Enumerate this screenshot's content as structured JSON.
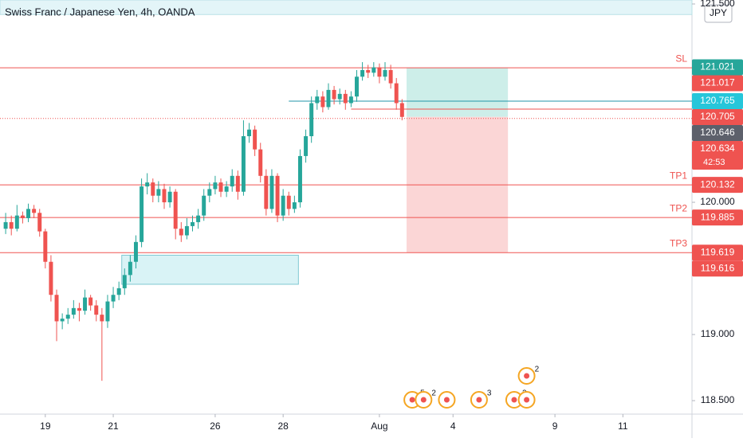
{
  "chart_data": {
    "type": "candlestick",
    "title": "Swiss Franc / Japanese Yen, 4h, OANDA",
    "currency": "JPY",
    "up_color": "#26a69a",
    "down_color": "#ef5350",
    "candles": [
      [
        119.8,
        119.92,
        119.76,
        119.85
      ],
      [
        119.85,
        119.9,
        119.75,
        119.8
      ],
      [
        119.8,
        119.98,
        119.78,
        119.9
      ],
      [
        119.9,
        119.93,
        119.84,
        119.88
      ],
      [
        119.88,
        119.99,
        119.85,
        119.95
      ],
      [
        119.95,
        119.98,
        119.88,
        119.92
      ],
      [
        119.92,
        119.95,
        119.74,
        119.78
      ],
      [
        119.78,
        119.8,
        119.5,
        119.55
      ],
      [
        119.55,
        119.6,
        119.25,
        119.3
      ],
      [
        119.3,
        119.34,
        118.95,
        119.1
      ],
      [
        119.1,
        119.16,
        119.04,
        119.12
      ],
      [
        119.12,
        119.2,
        119.08,
        119.15
      ],
      [
        119.15,
        119.26,
        119.12,
        119.2
      ],
      [
        119.2,
        119.24,
        119.1,
        119.18
      ],
      [
        119.18,
        119.34,
        119.15,
        119.28
      ],
      [
        119.28,
        119.3,
        119.18,
        119.22
      ],
      [
        119.22,
        119.26,
        119.1,
        119.15
      ],
      [
        119.15,
        119.2,
        118.65,
        119.1
      ],
      [
        119.1,
        119.3,
        119.05,
        119.25
      ],
      [
        119.25,
        119.36,
        119.2,
        119.3
      ],
      [
        119.3,
        119.4,
        119.26,
        119.35
      ],
      [
        119.35,
        119.5,
        119.3,
        119.45
      ],
      [
        119.45,
        119.6,
        119.4,
        119.55
      ],
      [
        119.55,
        119.75,
        119.5,
        119.7
      ],
      [
        119.7,
        120.18,
        119.66,
        120.12
      ],
      [
        120.12,
        120.22,
        120.06,
        120.15
      ],
      [
        120.15,
        120.18,
        120.0,
        120.05
      ],
      [
        120.05,
        120.16,
        120.0,
        120.1
      ],
      [
        120.1,
        120.14,
        119.95,
        120.0
      ],
      [
        120.0,
        120.12,
        119.96,
        120.08
      ],
      [
        120.08,
        120.1,
        119.72,
        119.8
      ],
      [
        119.8,
        119.85,
        119.7,
        119.75
      ],
      [
        119.75,
        119.88,
        119.72,
        119.82
      ],
      [
        119.82,
        119.9,
        119.78,
        119.85
      ],
      [
        119.85,
        119.95,
        119.8,
        119.9
      ],
      [
        119.9,
        120.1,
        119.86,
        120.05
      ],
      [
        120.05,
        120.15,
        120.0,
        120.1
      ],
      [
        120.1,
        120.2,
        120.06,
        120.15
      ],
      [
        120.15,
        120.18,
        120.04,
        120.08
      ],
      [
        120.08,
        120.16,
        120.04,
        120.12
      ],
      [
        120.12,
        120.25,
        120.08,
        120.2
      ],
      [
        120.2,
        120.24,
        120.02,
        120.08
      ],
      [
        120.08,
        120.62,
        120.05,
        120.5
      ],
      [
        120.5,
        120.6,
        120.45,
        120.55
      ],
      [
        120.55,
        120.58,
        120.35,
        120.4
      ],
      [
        120.4,
        120.45,
        120.15,
        120.2
      ],
      [
        120.2,
        120.25,
        119.9,
        119.95
      ],
      [
        119.95,
        120.25,
        119.92,
        120.2
      ],
      [
        120.2,
        120.22,
        119.85,
        119.9
      ],
      [
        119.9,
        120.1,
        119.86,
        120.05
      ],
      [
        120.05,
        120.08,
        119.9,
        119.95
      ],
      [
        119.95,
        120.05,
        119.92,
        120.0
      ],
      [
        120.0,
        120.4,
        119.96,
        120.35
      ],
      [
        120.35,
        120.55,
        120.3,
        120.5
      ],
      [
        120.5,
        120.8,
        120.45,
        120.75
      ],
      [
        120.75,
        120.85,
        120.7,
        120.8
      ],
      [
        120.8,
        120.84,
        120.68,
        120.72
      ],
      [
        120.72,
        120.9,
        120.7,
        120.85
      ],
      [
        120.85,
        120.88,
        120.74,
        120.78
      ],
      [
        120.78,
        120.86,
        120.74,
        120.82
      ],
      [
        120.82,
        120.85,
        120.7,
        120.75
      ],
      [
        120.75,
        120.84,
        120.72,
        120.8
      ],
      [
        120.8,
        121.0,
        120.76,
        120.95
      ],
      [
        120.95,
        121.06,
        120.92,
        121.0
      ],
      [
        121.0,
        121.04,
        120.94,
        120.98
      ],
      [
        120.98,
        121.06,
        120.95,
        121.02
      ],
      [
        121.02,
        121.05,
        120.9,
        120.95
      ],
      [
        120.95,
        121.06,
        120.92,
        121.0
      ],
      [
        121.0,
        121.04,
        120.86,
        120.9
      ],
      [
        120.9,
        120.94,
        120.7,
        120.75
      ],
      [
        120.75,
        120.78,
        120.62,
        120.646
      ]
    ],
    "xlim": [
      -1,
      121.2
    ],
    "xticks": [
      {
        "value": 7,
        "label": "19"
      },
      {
        "value": 19,
        "label": "21"
      },
      {
        "value": 37,
        "label": "26"
      },
      {
        "value": 49,
        "label": "28"
      },
      {
        "value": 66,
        "label": "Aug"
      },
      {
        "value": 79,
        "label": "4"
      },
      {
        "value": 97,
        "label": "9"
      },
      {
        "value": 109,
        "label": "11"
      }
    ],
    "ylim": [
      118.398,
      121.53
    ],
    "yticks": [
      {
        "value": 121.5,
        "label": "121.500"
      },
      {
        "value": 120,
        "label": "120.000"
      },
      {
        "value": 119,
        "label": "119.000"
      },
      {
        "value": 118.5,
        "label": "118.500"
      }
    ],
    "levels": [
      {
        "value": 121.017,
        "label": "SL",
        "color": "#ef5350"
      },
      {
        "value": 120.132,
        "label": "TP1",
        "color": "#ef5350"
      },
      {
        "value": 119.885,
        "label": "TP2",
        "color": "#ef5350"
      },
      {
        "value": 119.619,
        "label": "TP3",
        "color": "#ef5350"
      }
    ],
    "rays": [
      {
        "value": 120.765,
        "from": 50,
        "color": "#2196a8"
      },
      {
        "value": 120.705,
        "from": 61,
        "color": "#ef5350"
      }
    ],
    "dotted_level": {
      "value": 120.634,
      "color": "#ef5350"
    },
    "zones": [
      {
        "x": [
          20.5,
          51.7
        ],
        "y": [
          119.38,
          119.6
        ],
        "color": "#d9f3f6",
        "stroke": "#7fc8d3"
      },
      {
        "x": [
          -1,
          121.2
        ],
        "y": [
          121.42,
          121.53
        ],
        "color": "#e3f5f8",
        "stroke": "#b9e0e6"
      }
    ],
    "position": {
      "x": [
        70.8,
        88.7
      ],
      "top": 121.017,
      "entry": 120.646,
      "bottom": 119.619
    },
    "price_tags": [
      {
        "value": 121.021,
        "label": "121.021",
        "color": "#26a69a"
      },
      {
        "value": 121.017,
        "label": "121.017",
        "color": "#ef5350"
      },
      {
        "value": 120.765,
        "label": "120.765",
        "color": "#26c6da"
      },
      {
        "value": 120.705,
        "label": "120.705",
        "color": "#ef5350"
      },
      {
        "value": 120.646,
        "label": "120.646",
        "color": "#5d606b"
      },
      {
        "value": 120.634,
        "label": "120.634",
        "color": "#ef5350",
        "countdown": "42:53"
      },
      {
        "value": 120.132,
        "label": "120.132",
        "color": "#ef5350"
      },
      {
        "value": 119.885,
        "label": "119.885",
        "color": "#ef5350"
      },
      {
        "value": 119.619,
        "label": "119.619",
        "color": "#ef5350"
      },
      {
        "value": 119.616,
        "label": "119.616",
        "color": "#ef5350"
      }
    ],
    "events": [
      {
        "x": 71.8,
        "count": "5"
      },
      {
        "x": 73.8,
        "count": "2"
      },
      {
        "x": 77.9,
        "count": null
      },
      {
        "x": 83.6,
        "count": "3"
      },
      {
        "x": 89.8,
        "count": "2"
      },
      {
        "x": 92.0,
        "count": null
      },
      {
        "x": 92.0,
        "count": "2"
      }
    ]
  }
}
